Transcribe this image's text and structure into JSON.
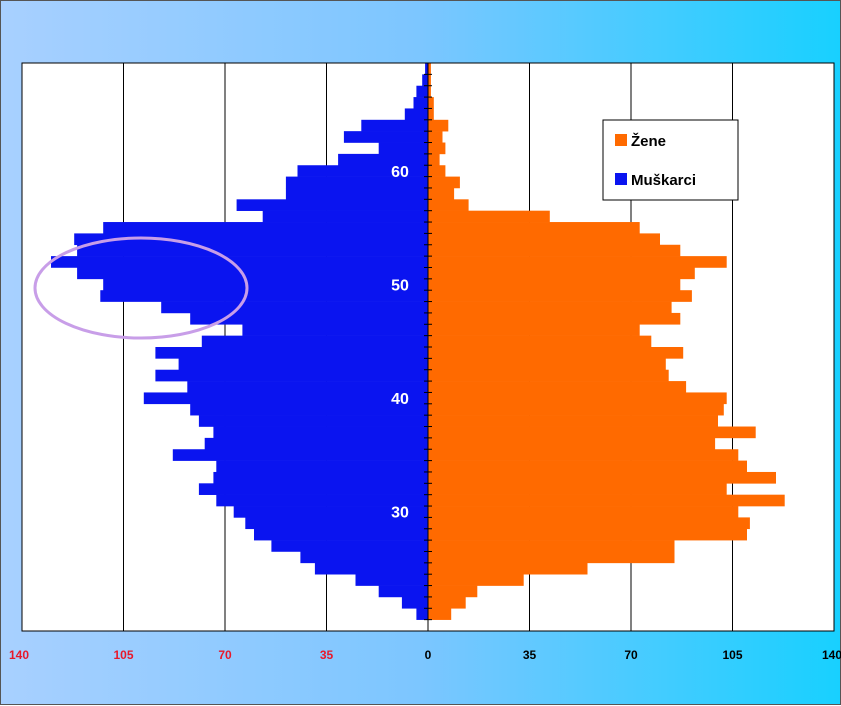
{
  "chart_data": {
    "type": "bar",
    "orientation": "horizontal",
    "layout": "population-pyramid",
    "xlim": [
      -140,
      140
    ],
    "ylim": [
      20,
      69
    ],
    "x_tick_labels": [
      "140",
      "105",
      "70",
      "35",
      "0",
      "35",
      "70",
      "105",
      "140"
    ],
    "x_tick_values": [
      -140,
      -105,
      -70,
      -35,
      0,
      35,
      70,
      105,
      140
    ],
    "y_tick_labels": [
      "30",
      "40",
      "50",
      "60"
    ],
    "y_tick_values": [
      30,
      40,
      50,
      60
    ],
    "grid": "vertical",
    "legend_position": "top-right",
    "categories": [
      21,
      22,
      23,
      24,
      25,
      26,
      27,
      28,
      29,
      30,
      31,
      32,
      33,
      34,
      35,
      36,
      37,
      38,
      39,
      40,
      41,
      42,
      43,
      44,
      45,
      46,
      47,
      48,
      49,
      50,
      51,
      52,
      53,
      54,
      55,
      56,
      57,
      58,
      59,
      60,
      61,
      62,
      63,
      64,
      65,
      66,
      67,
      68,
      69
    ],
    "series": [
      {
        "name": "Muškarci",
        "color": "#0a14f0",
        "values": [
          4,
          9,
          17,
          25,
          39,
          44,
          54,
          60,
          63,
          67,
          73,
          79,
          74,
          73,
          88,
          77,
          74,
          79,
          82,
          98,
          83,
          94,
          86,
          94,
          78,
          64,
          82,
          92,
          113,
          112,
          121,
          130,
          121,
          122,
          112,
          57,
          66,
          49,
          49,
          45,
          31,
          17,
          29,
          23,
          8,
          5,
          4,
          2,
          1
        ]
      },
      {
        "name": "Žene",
        "color": "#ff6a00",
        "values": [
          8,
          13,
          17,
          33,
          55,
          85,
          85,
          110,
          111,
          107,
          123,
          103,
          120,
          110,
          107,
          99,
          113,
          100,
          102,
          103,
          89,
          83,
          82,
          88,
          77,
          73,
          87,
          84,
          91,
          87,
          92,
          103,
          87,
          80,
          73,
          42,
          14,
          9,
          11,
          6,
          4,
          6,
          5,
          7,
          2,
          2,
          1,
          1,
          1
        ]
      }
    ],
    "annotation": {
      "type": "ellipse",
      "color": "#c89ee8"
    }
  }
}
